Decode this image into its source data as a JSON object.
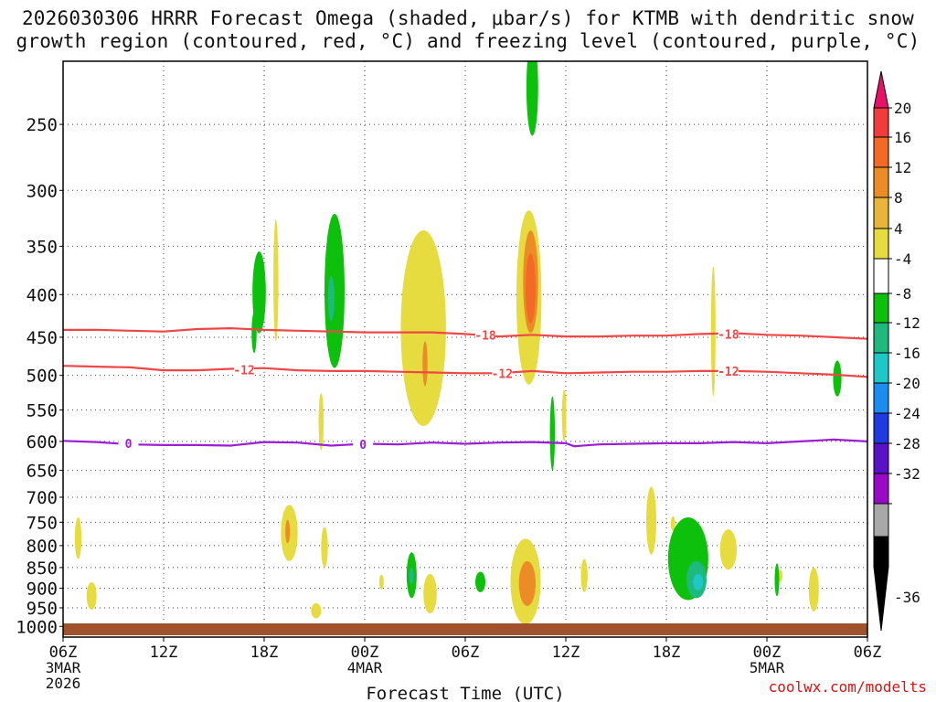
{
  "title": {
    "line1": "2026030306 HRRR Forecast Omega (shaded, μbar/s) for KTMB with dendritic snow",
    "line2": "growth region (contoured, red, °C) and freezing level (contoured, purple, °C)"
  },
  "credit": "coolwx.com/modelts",
  "chart_data": {
    "type": "heatmap",
    "title": "2026030306 HRRR Forecast Omega (shaded, μbar/s) for KTMB with dendritic snow growth region (contoured, red, °C) and freezing level (contoured, purple, °C)",
    "xlabel": "Forecast Time (UTC)",
    "ylabel": "",
    "x_unit": "forecast hour",
    "xlim": [
      0,
      48
    ],
    "ylim": [
      1030,
      210
    ],
    "y_scale": "log-pressure",
    "grid": true,
    "x_ticks": [
      {
        "x": 0,
        "label": "06Z",
        "sub": [
          "3MAR",
          "2026"
        ]
      },
      {
        "x": 6,
        "label": "12Z",
        "sub": []
      },
      {
        "x": 12,
        "label": "18Z",
        "sub": []
      },
      {
        "x": 18,
        "label": "00Z",
        "sub": [
          "4MAR"
        ]
      },
      {
        "x": 24,
        "label": "06Z",
        "sub": []
      },
      {
        "x": 30,
        "label": "12Z",
        "sub": []
      },
      {
        "x": 36,
        "label": "18Z",
        "sub": []
      },
      {
        "x": 42,
        "label": "00Z",
        "sub": [
          "5MAR"
        ]
      },
      {
        "x": 48,
        "label": "06Z",
        "sub": []
      }
    ],
    "y_ticks": [
      250,
      300,
      350,
      400,
      450,
      500,
      550,
      600,
      650,
      700,
      750,
      800,
      850,
      900,
      950,
      1000
    ],
    "colorbar": {
      "labels": [
        "20",
        "16",
        "12",
        "8",
        "4",
        "-4",
        "-8",
        "-12",
        "-16",
        "-20",
        "-24",
        "-28",
        "-32",
        "-36"
      ],
      "colors": [
        "#e8116a",
        "#f23b3b",
        "#f26a26",
        "#ec8c26",
        "#e8b53a",
        "#e6dc40",
        "#ffffff",
        "#0cc00c",
        "#1db97e",
        "#1fc8c8",
        "#1a8ef0",
        "#1e3ae0",
        "#5a12c8",
        "#9a0ac6",
        "#a8a8a8",
        "#000000"
      ]
    },
    "contours": [
      {
        "name": "dendritic -18",
        "value": -18,
        "color": "#f04646",
        "points": [
          [
            0,
            441
          ],
          [
            2,
            441
          ],
          [
            4,
            442
          ],
          [
            6,
            443
          ],
          [
            8,
            440
          ],
          [
            10,
            439
          ],
          [
            12,
            441
          ],
          [
            14,
            442
          ],
          [
            16,
            443
          ],
          [
            18,
            444
          ],
          [
            20,
            444
          ],
          [
            22,
            444
          ],
          [
            24,
            446
          ],
          [
            26,
            449
          ],
          [
            28,
            447
          ],
          [
            30,
            449
          ],
          [
            32,
            449
          ],
          [
            34,
            448
          ],
          [
            36,
            448
          ],
          [
            38,
            446
          ],
          [
            40,
            445
          ],
          [
            42,
            447
          ],
          [
            44,
            448
          ],
          [
            46,
            450
          ],
          [
            48,
            452
          ]
        ],
        "labels": [
          [
            25.2,
            447
          ],
          [
            39.7,
            446
          ]
        ]
      },
      {
        "name": "dendritic -12",
        "value": -12,
        "color": "#f04646",
        "points": [
          [
            0,
            487
          ],
          [
            2,
            488
          ],
          [
            4,
            489
          ],
          [
            6,
            493
          ],
          [
            8,
            493
          ],
          [
            10,
            491
          ],
          [
            12,
            490
          ],
          [
            14,
            493
          ],
          [
            16,
            494
          ],
          [
            18,
            494
          ],
          [
            20,
            495
          ],
          [
            22,
            496
          ],
          [
            24,
            497
          ],
          [
            26,
            497
          ],
          [
            28,
            494
          ],
          [
            30,
            497
          ],
          [
            32,
            496
          ],
          [
            34,
            495
          ],
          [
            36,
            495
          ],
          [
            38,
            494
          ],
          [
            40,
            494
          ],
          [
            42,
            495
          ],
          [
            44,
            497
          ],
          [
            46,
            499
          ],
          [
            48,
            502
          ]
        ],
        "labels": [
          [
            10.8,
            492
          ],
          [
            26.2,
            497
          ],
          [
            39.7,
            494
          ]
        ]
      },
      {
        "name": "freezing level 0",
        "value": 0,
        "color": "#9b1dd4",
        "points": [
          [
            0,
            599
          ],
          [
            2,
            601
          ],
          [
            4,
            605
          ],
          [
            6,
            606
          ],
          [
            8,
            606
          ],
          [
            10,
            607
          ],
          [
            12,
            601
          ],
          [
            14,
            602
          ],
          [
            16,
            607
          ],
          [
            18,
            604
          ],
          [
            20,
            605
          ],
          [
            22,
            602
          ],
          [
            24,
            604
          ],
          [
            26,
            602
          ],
          [
            28,
            601
          ],
          [
            30,
            603
          ],
          [
            30.5,
            608
          ],
          [
            32,
            605
          ],
          [
            34,
            604
          ],
          [
            36,
            603
          ],
          [
            38,
            603
          ],
          [
            40,
            601
          ],
          [
            42,
            603
          ],
          [
            44,
            600
          ],
          [
            46,
            597
          ],
          [
            48,
            600
          ]
        ],
        "labels": [
          [
            3.9,
            603
          ],
          [
            17.9,
            605
          ]
        ]
      }
    ],
    "shaded_regions": [
      {
        "omega": 4,
        "cx": 27.8,
        "py": 415,
        "dx": 0.75,
        "dp": 98
      },
      {
        "omega": 8,
        "cx": 27.9,
        "py": 390,
        "dx": 0.45,
        "dp": 55
      },
      {
        "omega": 12,
        "cx": 27.9,
        "py": 395,
        "dx": 0.3,
        "dp": 38
      },
      {
        "omega": 4,
        "cx": 21.5,
        "py": 455,
        "dx": 1.35,
        "dp": 120
      },
      {
        "omega": 8,
        "cx": 21.6,
        "py": 485,
        "dx": 0.15,
        "dp": 30
      },
      {
        "omega": 4,
        "cx": 27.6,
        "py": 890,
        "dx": 0.9,
        "dp": 105
      },
      {
        "omega": 8,
        "cx": 27.7,
        "py": 890,
        "dx": 0.5,
        "dp": 55
      },
      {
        "omega": 4,
        "cx": 13.5,
        "py": 775,
        "dx": 0.5,
        "dp": 60
      },
      {
        "omega": 8,
        "cx": 13.4,
        "py": 770,
        "dx": 0.12,
        "dp": 25
      },
      {
        "omega": 4,
        "cx": 12.7,
        "py": 390,
        "dx": 0.15,
        "dp": 65
      },
      {
        "omega": 4,
        "cx": 0.9,
        "py": 785,
        "dx": 0.2,
        "dp": 45
      },
      {
        "omega": 4,
        "cx": 1.7,
        "py": 920,
        "dx": 0.3,
        "dp": 35
      },
      {
        "omega": 4,
        "cx": 15.4,
        "py": 570,
        "dx": 0.15,
        "dp": 45
      },
      {
        "omega": 4,
        "cx": 15.6,
        "py": 805,
        "dx": 0.2,
        "dp": 45
      },
      {
        "omega": 4,
        "cx": 15.1,
        "py": 958,
        "dx": 0.3,
        "dp": 20
      },
      {
        "omega": 4,
        "cx": 21.9,
        "py": 915,
        "dx": 0.4,
        "dp": 50
      },
      {
        "omega": 4,
        "cx": 29.9,
        "py": 560,
        "dx": 0.1,
        "dp": 40
      },
      {
        "omega": 4,
        "cx": 31.1,
        "py": 870,
        "dx": 0.2,
        "dp": 40
      },
      {
        "omega": 4,
        "cx": 35.1,
        "py": 750,
        "dx": 0.3,
        "dp": 70
      },
      {
        "omega": 4,
        "cx": 36.4,
        "py": 753,
        "dx": 0.12,
        "dp": 15
      },
      {
        "omega": 4,
        "cx": 38.8,
        "py": 450,
        "dx": 0.12,
        "dp": 80
      },
      {
        "omega": 4,
        "cx": 39.7,
        "py": 810,
        "dx": 0.5,
        "dp": 45
      },
      {
        "omega": 4,
        "cx": 42.8,
        "py": 870,
        "dx": 0.08,
        "dp": 15
      },
      {
        "omega": 4,
        "cx": 44.8,
        "py": 905,
        "dx": 0.3,
        "dp": 55
      },
      {
        "omega": 4,
        "cx": 19.0,
        "py": 885,
        "dx": 0.08,
        "dp": 18
      },
      {
        "omega": -4,
        "cx": 28.0,
        "py": 228,
        "dx": 0.35,
        "dp": 30
      },
      {
        "omega": -4,
        "cx": 16.2,
        "py": 405,
        "dx": 0.6,
        "dp": 85
      },
      {
        "omega": -8,
        "cx": 16.0,
        "py": 405,
        "dx": 0.2,
        "dp": 25
      },
      {
        "omega": -4,
        "cx": 11.7,
        "py": 400,
        "dx": 0.4,
        "dp": 45
      },
      {
        "omega": -4,
        "cx": 11.4,
        "py": 445,
        "dx": 0.15,
        "dp": 25
      },
      {
        "omega": -4,
        "cx": 29.2,
        "py": 590,
        "dx": 0.15,
        "dp": 60
      },
      {
        "omega": -4,
        "cx": 20.8,
        "py": 870,
        "dx": 0.3,
        "dp": 55
      },
      {
        "omega": -8,
        "cx": 20.8,
        "py": 870,
        "dx": 0.1,
        "dp": 20
      },
      {
        "omega": -4,
        "cx": 24.9,
        "py": 885,
        "dx": 0.3,
        "dp": 25
      },
      {
        "omega": -4,
        "cx": 37.3,
        "py": 835,
        "dx": 1.2,
        "dp": 95
      },
      {
        "omega": -8,
        "cx": 37.8,
        "py": 880,
        "dx": 0.6,
        "dp": 45
      },
      {
        "omega": -12,
        "cx": 37.9,
        "py": 885,
        "dx": 0.3,
        "dp": 20
      },
      {
        "omega": -4,
        "cx": 42.6,
        "py": 880,
        "dx": 0.1,
        "dp": 40
      },
      {
        "omega": -4,
        "cx": 46.2,
        "py": 505,
        "dx": 0.25,
        "dp": 25
      }
    ]
  }
}
